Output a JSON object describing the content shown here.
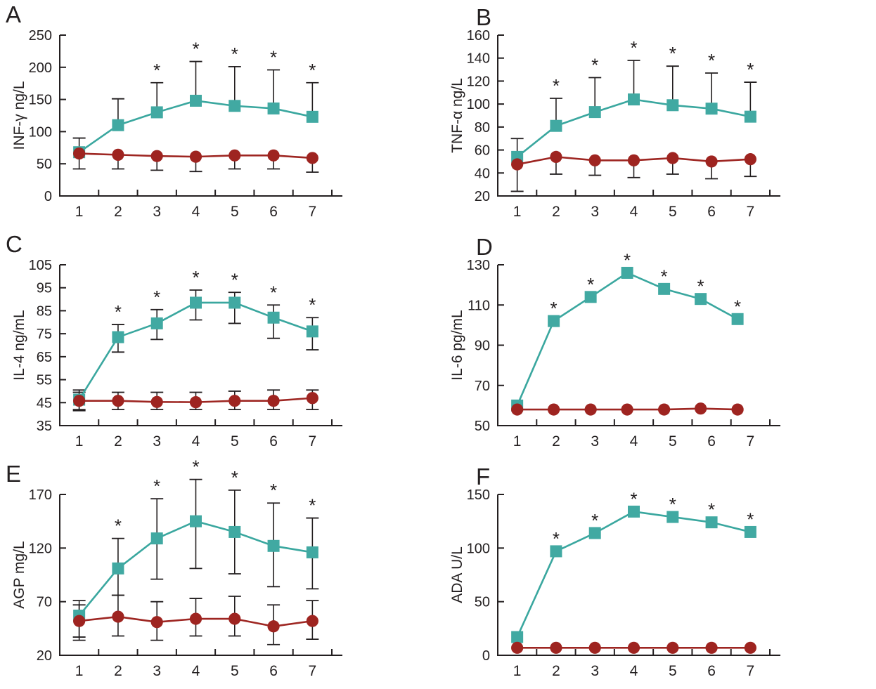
{
  "figure": {
    "background": "#ffffff",
    "axis_color": "#231f20",
    "text_color": "#231f20",
    "significance_marker": "*",
    "series_styles": {
      "squares": {
        "marker": "square",
        "line_color": "#3aa79f",
        "marker_fill": "#41a9a2"
      },
      "circles": {
        "marker": "circle",
        "line_color": "#9e2622",
        "marker_fill": "#9e2420"
      }
    }
  },
  "chart_data": [
    {
      "panel_label": "A",
      "type": "line",
      "ylabel": "INF-γ ng/L",
      "ylim": [
        0,
        250
      ],
      "yticks": [
        0,
        50,
        100,
        150,
        200,
        250
      ],
      "categories": [
        "1",
        "2",
        "3",
        "4",
        "5",
        "6",
        "7"
      ],
      "series": [
        {
          "name": "squares",
          "values": [
            68,
            110,
            130,
            148,
            140,
            136,
            123
          ],
          "err_hi": [
            90,
            151,
            176,
            209,
            201,
            196,
            176
          ],
          "err_lo": null
        },
        {
          "name": "circles",
          "values": [
            66,
            64,
            62,
            61,
            63,
            63,
            59
          ],
          "err_hi": null,
          "err_lo": [
            42,
            42,
            40,
            38,
            42,
            42,
            37
          ]
        }
      ],
      "significance_x": [
        3,
        4,
        5,
        6,
        7
      ]
    },
    {
      "panel_label": "B",
      "type": "line",
      "ylabel": "TNF-α ng/L",
      "ylim": [
        20,
        160
      ],
      "yticks": [
        20,
        40,
        60,
        80,
        100,
        120,
        140,
        160
      ],
      "categories": [
        "1",
        "2",
        "3",
        "4",
        "5",
        "6",
        "7"
      ],
      "series": [
        {
          "name": "squares",
          "values": [
            54,
            81,
            93,
            104,
            99,
            96,
            89
          ],
          "err_hi": [
            70,
            105,
            123,
            138,
            133,
            127,
            119
          ],
          "err_lo": null
        },
        {
          "name": "circles",
          "values": [
            47.5,
            54,
            51,
            51,
            53,
            50,
            52
          ],
          "err_hi": null,
          "err_lo": [
            24,
            39,
            38,
            36,
            39,
            35,
            37
          ]
        }
      ],
      "significance_x": [
        2,
        3,
        4,
        5,
        6,
        7
      ]
    },
    {
      "panel_label": "C",
      "type": "line",
      "ylabel": "IL-4 ng/mL",
      "ylim": [
        35,
        105
      ],
      "yticks": [
        35,
        45,
        55,
        65,
        75,
        85,
        95,
        105
      ],
      "categories": [
        "1",
        "2",
        "3",
        "4",
        "5",
        "6",
        "7"
      ],
      "series": [
        {
          "name": "squares",
          "values": [
            46.3,
            73.5,
            79.5,
            88.5,
            88.5,
            82,
            76
          ],
          "err_hi": [
            50.5,
            79,
            85.5,
            94,
            93,
            87.5,
            82
          ],
          "err_lo": [
            41.5,
            67,
            72.5,
            81,
            79.5,
            73,
            68
          ]
        },
        {
          "name": "circles",
          "values": [
            45.8,
            45.8,
            45.3,
            45.2,
            45.8,
            45.8,
            47
          ],
          "err_hi": [
            49.5,
            49.5,
            49.5,
            49.5,
            50,
            50.5,
            50.5
          ],
          "err_lo": [
            42,
            42,
            42,
            42,
            42,
            42,
            42
          ]
        }
      ],
      "significance_x": [
        2,
        3,
        4,
        5,
        6,
        7
      ]
    },
    {
      "panel_label": "D",
      "type": "line",
      "ylabel": "IL-6 pg/mL",
      "ylim": [
        50,
        130
      ],
      "yticks": [
        50,
        70,
        90,
        110,
        130
      ],
      "categories": [
        "1",
        "2",
        "3",
        "4",
        "5",
        "6",
        "7"
      ],
      "x_positions": [
        1,
        1.94,
        2.89,
        3.83,
        4.78,
        5.72,
        6.67
      ],
      "series": [
        {
          "name": "squares",
          "values": [
            60,
            102,
            114,
            126,
            118,
            113,
            103
          ],
          "err_hi": null,
          "err_lo": null
        },
        {
          "name": "circles",
          "values": [
            58,
            58,
            58,
            58,
            58,
            58.5,
            58
          ],
          "err_hi": null,
          "err_lo": null
        }
      ],
      "significance_x": [
        2,
        3,
        4,
        5,
        6,
        7
      ]
    },
    {
      "panel_label": "E",
      "type": "line",
      "ylabel": "AGP mg/L",
      "ylim": [
        20,
        170
      ],
      "yticks": [
        20,
        70,
        120,
        170
      ],
      "categories": [
        "1",
        "2",
        "3",
        "4",
        "5",
        "6",
        "7"
      ],
      "series": [
        {
          "name": "squares",
          "values": [
            57,
            101,
            129,
            145,
            135,
            122,
            116
          ],
          "err_hi": [
            71,
            129,
            166,
            184,
            174,
            162,
            148
          ],
          "err_lo": [
            34,
            76,
            91,
            101,
            96,
            84,
            82
          ]
        },
        {
          "name": "circles",
          "values": [
            52,
            56,
            51,
            54,
            54,
            47,
            52
          ],
          "err_hi": [
            67,
            76,
            70,
            73,
            75,
            67,
            71
          ],
          "err_lo": [
            37,
            38,
            34,
            38,
            38,
            30,
            35
          ]
        }
      ],
      "significance_x": [
        2,
        3,
        4,
        5,
        6,
        7
      ]
    },
    {
      "panel_label": "F",
      "type": "line",
      "ylabel": "ADA U/L",
      "ylim": [
        0,
        150
      ],
      "yticks": [
        0,
        50,
        100,
        150
      ],
      "categories": [
        "1",
        "2",
        "3",
        "4",
        "5",
        "6",
        "7"
      ],
      "series": [
        {
          "name": "squares",
          "values": [
            17,
            97,
            114,
            134,
            129,
            124,
            115
          ],
          "err_hi": null,
          "err_lo": null
        },
        {
          "name": "circles",
          "values": [
            7,
            7,
            7,
            7,
            7,
            7,
            7
          ],
          "err_hi": null,
          "err_lo": null
        }
      ],
      "significance_x": [
        2,
        3,
        4,
        5,
        6,
        7
      ]
    }
  ]
}
